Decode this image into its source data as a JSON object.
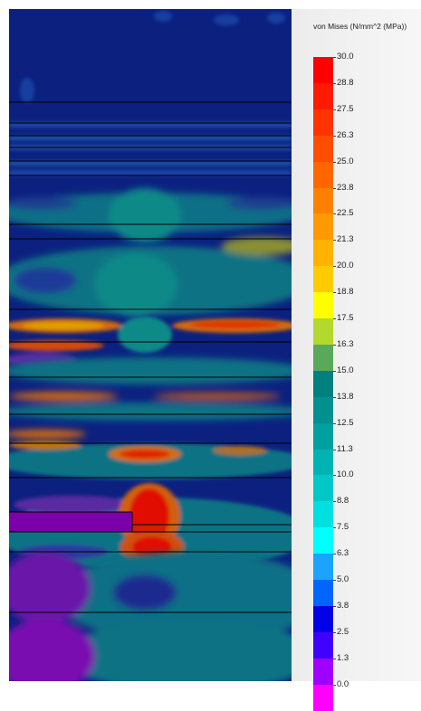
{
  "legend": {
    "title": "von Mises (N/mm^2 (MPa))",
    "ticks": [
      "30.0",
      "28.8",
      "27.5",
      "26.3",
      "25.0",
      "23.8",
      "22.5",
      "21.3",
      "20.0",
      "18.8",
      "17.5",
      "16.3",
      "15.0",
      "13.8",
      "12.5",
      "11.3",
      "10.0",
      "8.8",
      "7.5",
      "6.3",
      "5.0",
      "3.8",
      "2.5",
      "1.3",
      "0.0"
    ],
    "colors": [
      "#ff0000",
      "#ff1a00",
      "#ff3300",
      "#ff4d00",
      "#ff6600",
      "#ff8000",
      "#ff9900",
      "#ffb300",
      "#ffcc00",
      "#ffff00",
      "#b3d92e",
      "#5aa85a",
      "#00807f",
      "#009090",
      "#00a0a0",
      "#00b3b3",
      "#00c8c8",
      "#00e0e0",
      "#00ffff",
      "#1aa3ff",
      "#0066ff",
      "#0000e6",
      "#4000ff",
      "#a000ff",
      "#ff00ff"
    ]
  },
  "colors": {
    "background": "#0a1f7a",
    "dark_blue": "#102080",
    "teal": "#0b7b84",
    "orange": "#ff8000",
    "red": "#e60000",
    "purple": "#7b00a8"
  }
}
